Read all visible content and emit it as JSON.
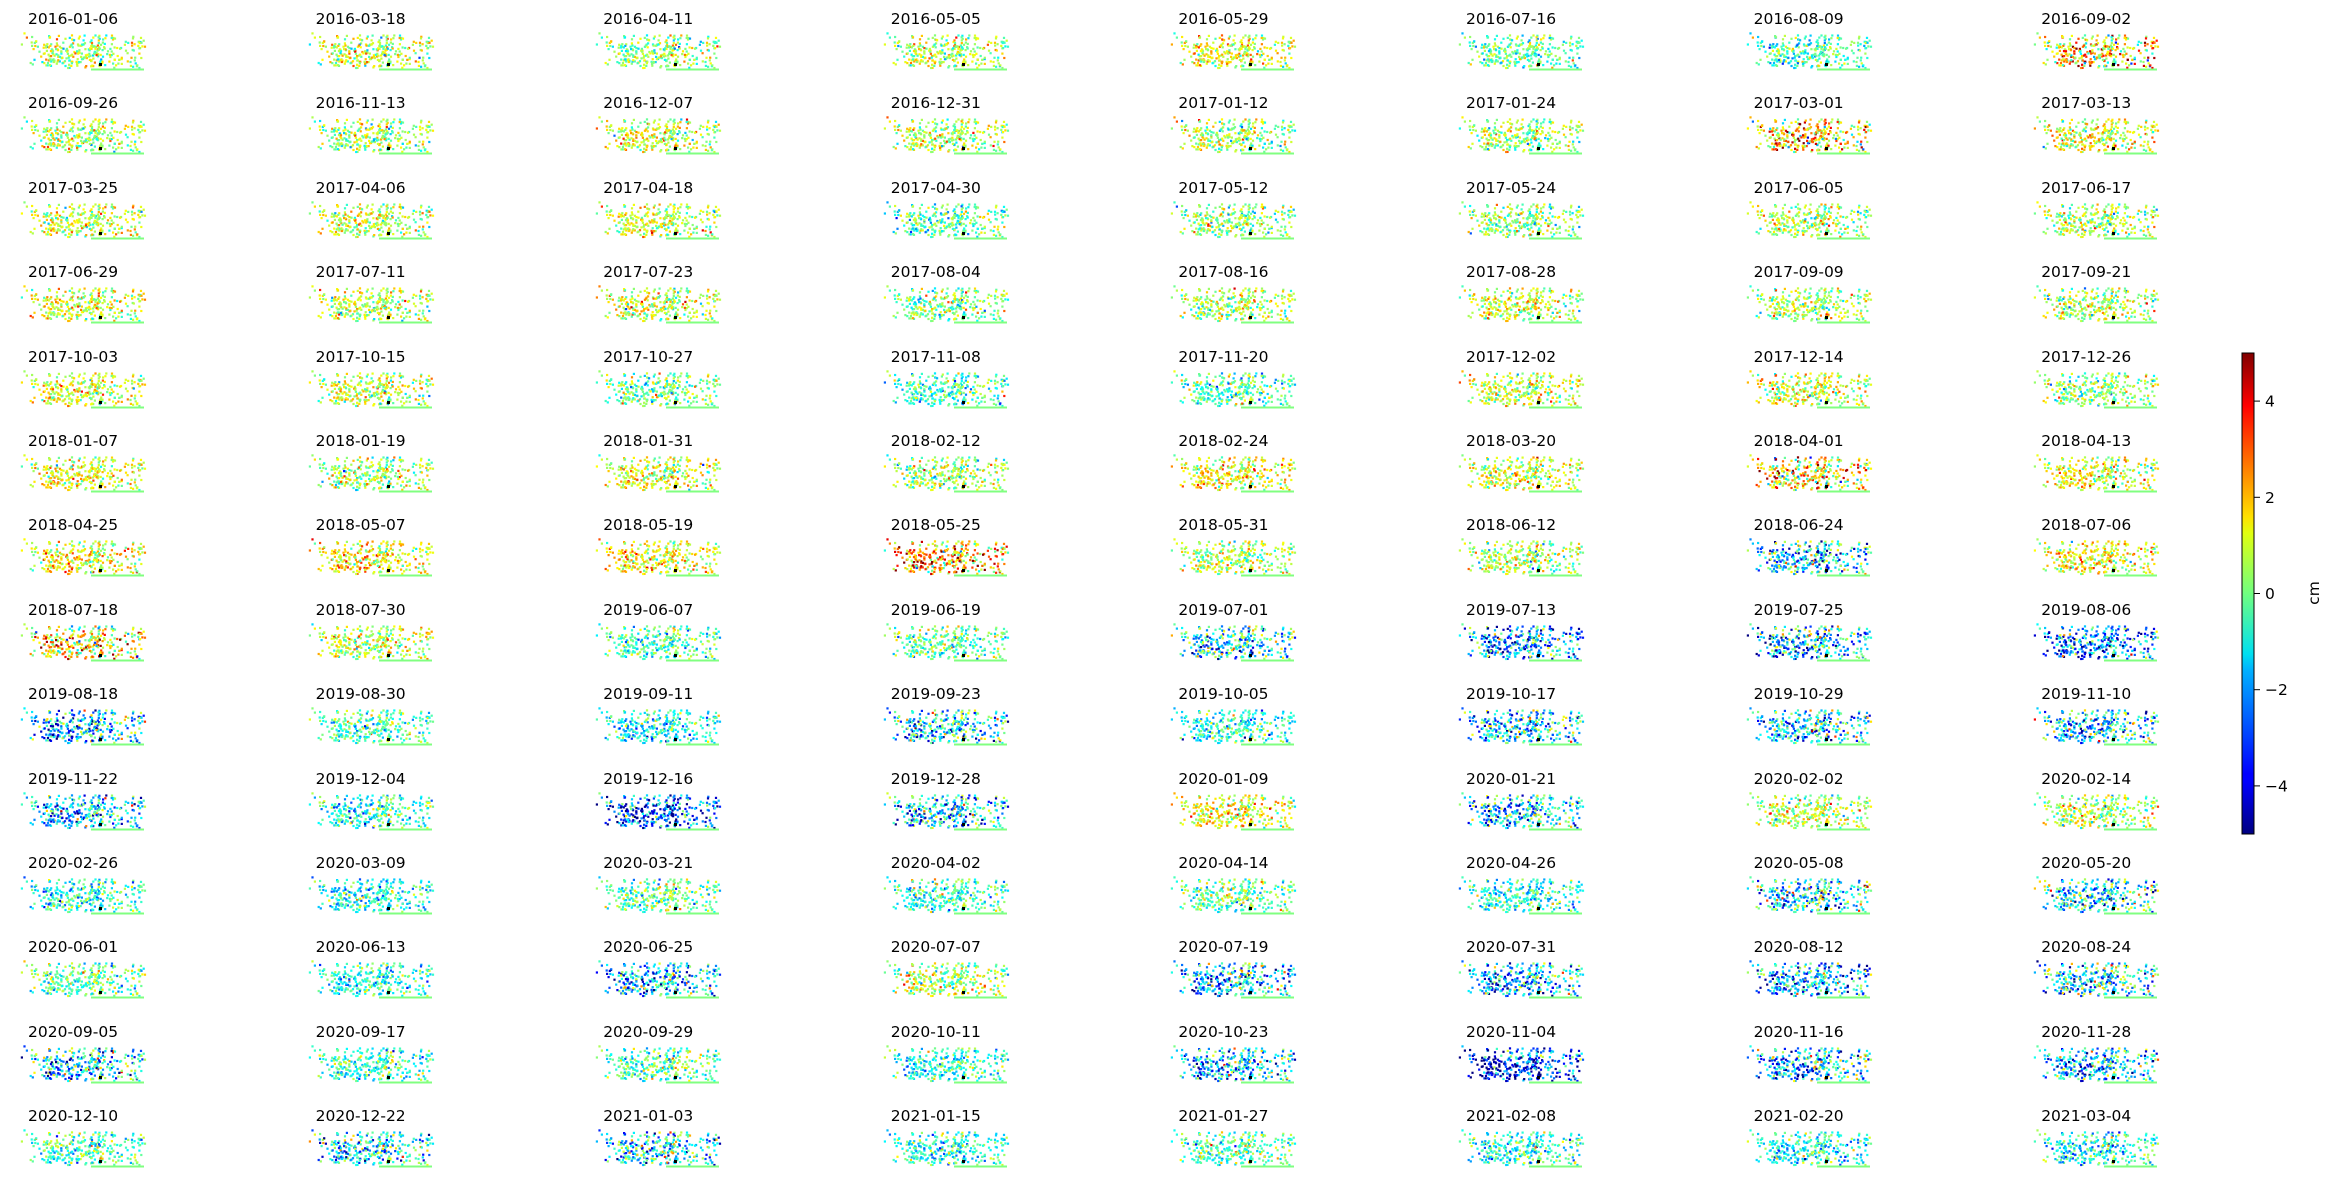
{
  "chart_data": {
    "type": "scatter",
    "subtype": "small-multiples displacement maps",
    "panel_titles": [
      "2016-01-06",
      "2016-03-18",
      "2016-04-11",
      "2016-05-05",
      "2016-05-29",
      "2016-07-16",
      "2016-08-09",
      "2016-09-02",
      "2016-09-26",
      "2016-11-13",
      "2016-12-07",
      "2016-12-31",
      "2017-01-12",
      "2017-01-24",
      "2017-03-01",
      "2017-03-13",
      "2017-03-25",
      "2017-04-06",
      "2017-04-18",
      "2017-04-30",
      "2017-05-12",
      "2017-05-24",
      "2017-06-05",
      "2017-06-17",
      "2017-06-29",
      "2017-07-11",
      "2017-07-23",
      "2017-08-04",
      "2017-08-16",
      "2017-08-28",
      "2017-09-09",
      "2017-09-21",
      "2017-10-03",
      "2017-10-15",
      "2017-10-27",
      "2017-11-08",
      "2017-11-20",
      "2017-12-02",
      "2017-12-14",
      "2017-12-26",
      "2018-01-07",
      "2018-01-19",
      "2018-01-31",
      "2018-02-12",
      "2018-02-24",
      "2018-03-20",
      "2018-04-01",
      "2018-04-13",
      "2018-04-25",
      "2018-05-07",
      "2018-05-19",
      "2018-05-25",
      "2018-05-31",
      "2018-06-12",
      "2018-06-24",
      "2018-07-06",
      "2018-07-18",
      "2018-07-30",
      "2019-06-07",
      "2019-06-19",
      "2019-07-01",
      "2019-07-13",
      "2019-07-25",
      "2019-08-06",
      "2019-08-18",
      "2019-08-30",
      "2019-09-11",
      "2019-09-23",
      "2019-10-05",
      "2019-10-17",
      "2019-10-29",
      "2019-11-10",
      "2019-11-22",
      "2019-12-04",
      "2019-12-16",
      "2019-12-28",
      "2020-01-09",
      "2020-01-21",
      "2020-02-02",
      "2020-02-14",
      "2020-02-26",
      "2020-03-09",
      "2020-03-21",
      "2020-04-02",
      "2020-04-14",
      "2020-04-26",
      "2020-05-08",
      "2020-05-20",
      "2020-06-01",
      "2020-06-13",
      "2020-06-25",
      "2020-07-07",
      "2020-07-19",
      "2020-07-31",
      "2020-08-12",
      "2020-08-24",
      "2020-09-05",
      "2020-09-17",
      "2020-09-29",
      "2020-10-11",
      "2020-10-23",
      "2020-11-04",
      "2020-11-16",
      "2020-11-28",
      "2020-12-10",
      "2020-12-22",
      "2021-01-03",
      "2021-01-15",
      "2021-01-27",
      "2021-02-08",
      "2021-02-20",
      "2021-03-04"
    ],
    "panel_mean_displacement_cm": [
      0.3,
      0.4,
      0.2,
      0.5,
      0.8,
      -0.2,
      -0.5,
      1.2,
      0.4,
      0.2,
      0.6,
      0.5,
      0.3,
      0.2,
      1.3,
      0.8,
      0.6,
      0.5,
      0.7,
      -0.3,
      0.2,
      0.1,
      0.3,
      0.3,
      0.8,
      0.6,
      0.7,
      0.1,
      0.4,
      0.5,
      0.3,
      0.4,
      0.8,
      0.5,
      -0.2,
      -0.6,
      -0.4,
      0.6,
      0.7,
      0.2,
      0.9,
      0.3,
      0.8,
      0.4,
      1.0,
      0.8,
      1.2,
      0.8,
      0.9,
      1.0,
      0.9,
      1.8,
      0.5,
      0.4,
      -1.5,
      1.0,
      1.2,
      0.6,
      -0.5,
      -0.2,
      -1.3,
      -1.8,
      -1.7,
      -2.2,
      -1.6,
      -0.4,
      -1.0,
      -1.2,
      -0.8,
      -1.2,
      -1.3,
      -1.4,
      -1.5,
      -0.8,
      -2.5,
      -1.6,
      1.0,
      -1.2,
      0.4,
      0.3,
      -0.9,
      -1.0,
      -0.3,
      -0.6,
      -0.3,
      -0.8,
      -1.1,
      -1.2,
      -0.4,
      -0.8,
      -1.6,
      0.3,
      -1.6,
      -1.6,
      -1.8,
      -1.2,
      -1.3,
      -0.6,
      -0.2,
      -0.8,
      -1.7,
      -3.0,
      -1.5,
      -1.4,
      -0.5,
      -1.2,
      -1.2,
      -0.8,
      -0.4,
      -0.8,
      -0.9,
      -0.9
    ],
    "colorbar": {
      "label": "cm",
      "vmin": -5,
      "vmax": 5,
      "ticks": [
        4,
        2,
        0,
        -2,
        -4
      ],
      "tick_labels": [
        "4",
        "2",
        "0",
        "−2",
        "−4"
      ],
      "colormap": "jet"
    },
    "grid": false,
    "axes_visible": false,
    "layout": {
      "rows": 14,
      "cols": 8
    }
  },
  "colors": {
    "reference_line": "#80ff80",
    "reference_point": "#000000"
  }
}
